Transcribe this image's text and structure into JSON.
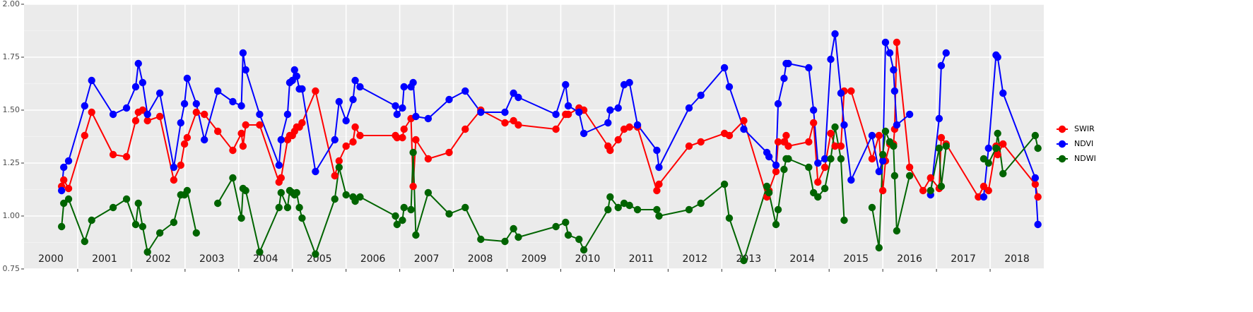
{
  "chart_data": {
    "type": "line",
    "x": [
      2000.7,
      2000.74,
      2000.83,
      2001.13,
      2001.26,
      2001.66,
      2001.91,
      2002.08,
      2002.13,
      2002.21,
      2002.3,
      2002.53,
      2002.79,
      2002.92,
      2002.99,
      2003.04,
      2003.21,
      2003.36,
      2003.61,
      2003.89,
      2004.05,
      2004.08,
      2004.13,
      2004.39,
      2004.75,
      2004.79,
      2004.91,
      2004.95,
      2005.0,
      2005.04,
      2005.08,
      2005.13,
      2005.18,
      2005.43,
      2005.79,
      2005.87,
      2006.0,
      2006.13,
      2006.17,
      2006.26,
      2006.92,
      2006.95,
      2007.05,
      2007.08,
      2007.21,
      2007.25,
      2007.3,
      2007.53,
      2007.92,
      2008.22,
      2008.51,
      2008.96,
      2009.12,
      2009.21,
      2009.91,
      2010.09,
      2010.14,
      2010.34,
      2010.43,
      2010.88,
      2010.92,
      2011.07,
      2011.18,
      2011.28,
      2011.43,
      2011.79,
      2011.83,
      2012.39,
      2012.61,
      2013.05,
      2013.14,
      2013.41,
      2013.84,
      2013.88,
      2014.01,
      2014.05,
      2014.16,
      2014.2,
      2014.24,
      2014.62,
      2014.71,
      2014.79,
      2014.92,
      2015.03,
      2015.11,
      2015.22,
      2015.28,
      2015.41,
      2015.8,
      2015.93,
      2016.0,
      2016.05,
      2016.13,
      2016.2,
      2016.22,
      2016.26,
      2016.5,
      2016.75,
      2016.89,
      2017.05,
      2017.09,
      2017.18,
      2017.78,
      2017.88,
      2017.97,
      2018.11,
      2018.14,
      2018.24,
      2018.84,
      2018.89
    ],
    "series": [
      {
        "name": "SWIR",
        "color": "#ff0000",
        "values": [
          1.14,
          1.17,
          1.13,
          1.38,
          1.49,
          1.29,
          1.28,
          1.45,
          1.49,
          1.5,
          1.45,
          1.47,
          1.17,
          1.24,
          1.34,
          1.37,
          1.49,
          1.48,
          1.4,
          1.31,
          1.39,
          1.33,
          1.43,
          1.43,
          1.16,
          1.18,
          1.36,
          1.38,
          1.38,
          1.4,
          1.42,
          1.42,
          1.44,
          1.59,
          1.19,
          1.26,
          1.33,
          1.35,
          1.42,
          1.38,
          1.38,
          1.37,
          1.37,
          1.41,
          1.46,
          1.14,
          1.36,
          1.27,
          1.3,
          1.41,
          1.5,
          1.44,
          1.45,
          1.43,
          1.41,
          1.48,
          1.48,
          1.51,
          1.5,
          1.33,
          1.31,
          1.36,
          1.41,
          1.42,
          1.42,
          1.12,
          1.15,
          1.33,
          1.35,
          1.39,
          1.38,
          1.45,
          1.09,
          1.12,
          1.21,
          1.35,
          1.35,
          1.38,
          1.33,
          1.35,
          1.44,
          1.16,
          1.23,
          1.39,
          1.33,
          1.33,
          1.59,
          1.59,
          1.27,
          1.38,
          1.12,
          1.26,
          1.34,
          1.34,
          1.41,
          1.82,
          1.23,
          1.12,
          1.18,
          1.13,
          1.37,
          1.34,
          1.09,
          1.14,
          1.12,
          1.33,
          1.29,
          1.34,
          1.15,
          1.09
        ]
      },
      {
        "name": "NDVI",
        "color": "#0000ff",
        "values": [
          1.12,
          1.23,
          1.26,
          1.52,
          1.64,
          1.48,
          1.51,
          1.61,
          1.72,
          1.63,
          1.48,
          1.58,
          1.23,
          1.44,
          1.53,
          1.65,
          1.53,
          1.36,
          1.59,
          1.54,
          1.52,
          1.77,
          1.69,
          1.48,
          1.24,
          1.36,
          1.48,
          1.63,
          1.64,
          1.69,
          1.66,
          1.6,
          1.6,
          1.21,
          1.36,
          1.54,
          1.45,
          1.55,
          1.64,
          1.61,
          1.52,
          1.48,
          1.51,
          1.61,
          1.61,
          1.63,
          1.47,
          1.46,
          1.55,
          1.59,
          1.49,
          1.49,
          1.58,
          1.56,
          1.48,
          1.62,
          1.52,
          1.49,
          1.39,
          1.44,
          1.5,
          1.51,
          1.62,
          1.63,
          1.43,
          1.31,
          1.23,
          1.51,
          1.57,
          1.7,
          1.61,
          1.41,
          1.3,
          1.28,
          1.24,
          1.53,
          1.65,
          1.72,
          1.72,
          1.7,
          1.5,
          1.25,
          1.27,
          1.74,
          1.86,
          1.58,
          1.43,
          1.17,
          1.38,
          1.21,
          1.26,
          1.82,
          1.77,
          1.69,
          1.59,
          1.43,
          1.48,
          null,
          1.1,
          1.46,
          1.71,
          1.77,
          null,
          1.09,
          1.32,
          1.76,
          1.75,
          1.58,
          1.18,
          0.96
        ]
      },
      {
        "name": "NDWI",
        "color": "#006400",
        "values": [
          0.95,
          1.06,
          1.08,
          0.88,
          0.98,
          1.04,
          1.08,
          0.96,
          1.06,
          0.95,
          0.83,
          0.92,
          0.97,
          1.1,
          1.1,
          1.12,
          0.92,
          null,
          1.06,
          1.18,
          0.99,
          1.13,
          1.12,
          0.83,
          1.04,
          1.11,
          1.04,
          1.12,
          1.11,
          1.1,
          1.11,
          1.04,
          0.99,
          0.82,
          1.08,
          1.23,
          1.1,
          1.09,
          1.07,
          1.09,
          1.0,
          0.96,
          0.98,
          1.04,
          1.03,
          1.3,
          0.91,
          1.11,
          1.01,
          1.04,
          0.89,
          0.88,
          0.94,
          0.9,
          0.95,
          0.97,
          0.91,
          0.89,
          0.84,
          1.03,
          1.09,
          1.04,
          1.06,
          1.05,
          1.03,
          1.03,
          1.0,
          1.03,
          1.06,
          1.15,
          0.99,
          0.79,
          1.14,
          1.11,
          0.96,
          1.03,
          1.22,
          1.27,
          1.27,
          1.23,
          1.11,
          1.09,
          1.13,
          1.27,
          1.42,
          1.27,
          0.98,
          null,
          1.04,
          0.85,
          1.29,
          1.4,
          1.35,
          1.33,
          1.19,
          0.93,
          1.19,
          null,
          1.12,
          1.32,
          1.14,
          1.33,
          null,
          1.27,
          1.25,
          1.32,
          1.39,
          1.2,
          1.38,
          1.32
        ]
      }
    ],
    "xlim": [
      2000,
      2019
    ],
    "xticks": [
      2001,
      2002,
      2003,
      2004,
      2005,
      2006,
      2007,
      2008,
      2009,
      2010,
      2011,
      2012,
      2013,
      2014,
      2015,
      2016,
      2017,
      2018
    ],
    "periods": [
      "2000",
      "2001",
      "2002",
      "2003",
      "2004",
      "2005",
      "2006",
      "2007",
      "2008",
      "2009",
      "2010",
      "2011",
      "2012",
      "2013",
      "2014",
      "2015",
      "2016",
      "2017",
      "2018"
    ],
    "ylim": [
      0.75,
      2
    ],
    "yticks": [
      0.75,
      {
        "value": 1,
        "label": "1.00"
      },
      1.25,
      {
        "value": 1.5,
        "label": "1.50"
      },
      1.75,
      {
        "value": 2,
        "label": "2.00"
      }
    ],
    "minor_yticks": [
      0.875,
      1.125,
      1.375,
      1.625,
      1.875
    ],
    "grid": true,
    "legend": "right"
  }
}
